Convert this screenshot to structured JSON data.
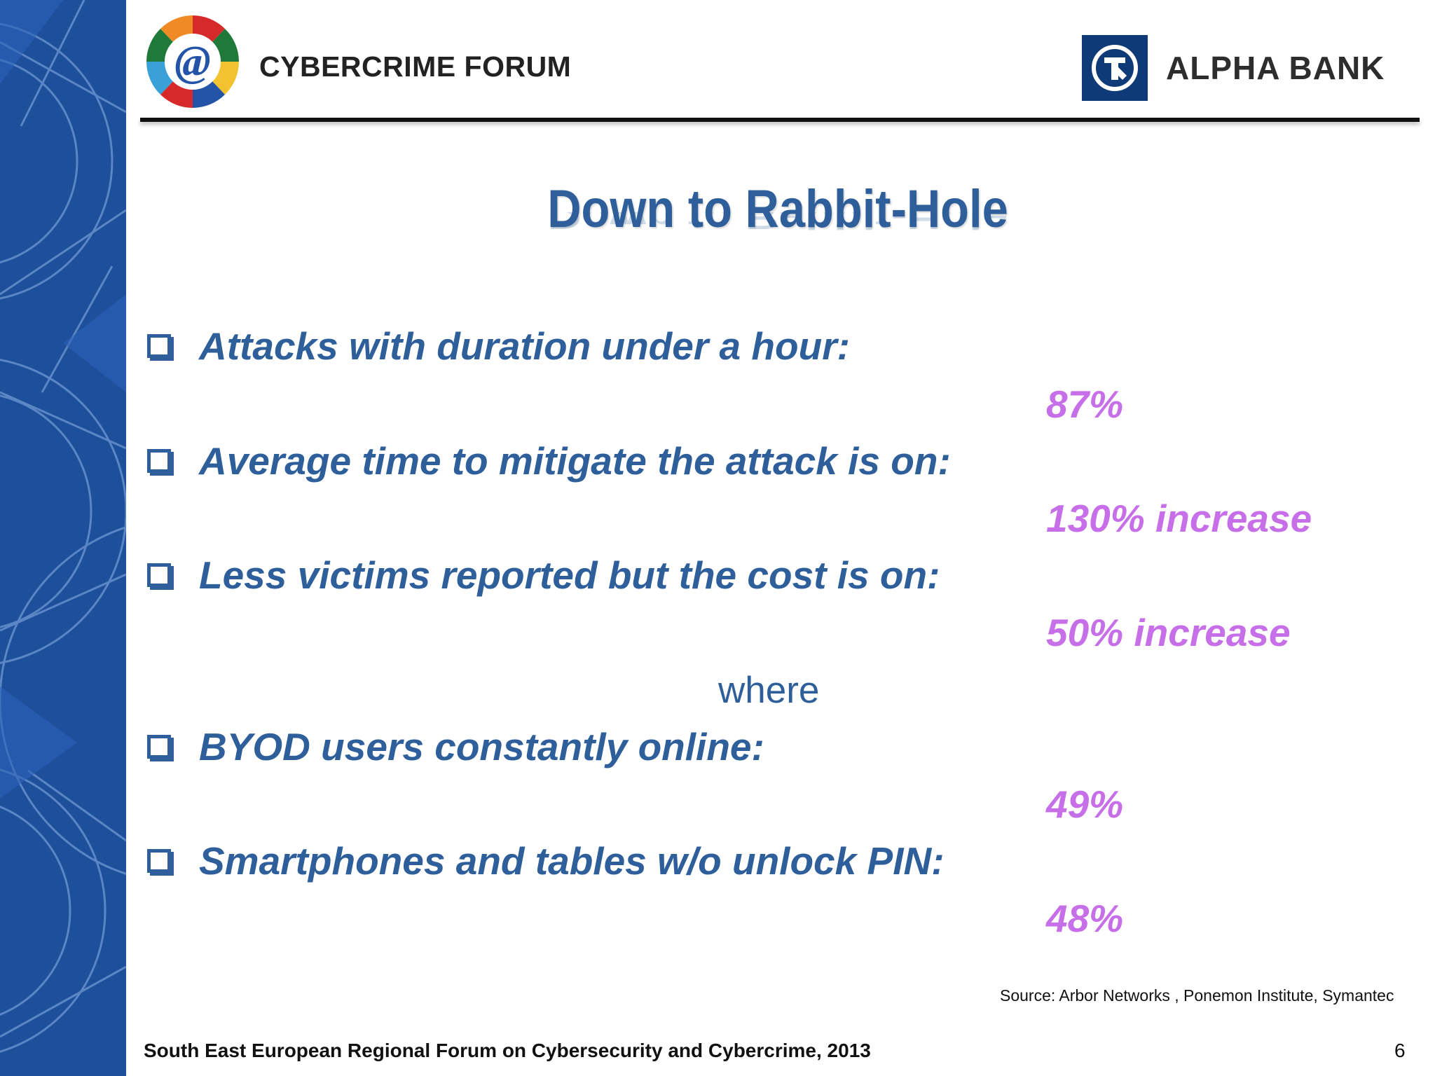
{
  "header": {
    "forum_title": "CYBERCRIME FORUM",
    "bank_name": "ALPHA BANK",
    "forum_logo_icon": "at-sign-globe-flags-logo",
    "bank_logo_icon": "alpha-bank-mark-icon"
  },
  "slide": {
    "title": "Down to Rabbit-Hole",
    "where_label": "where",
    "bullets": [
      {
        "text": "Attacks with duration under a hour:",
        "stat": "87%"
      },
      {
        "text": "Average time to mitigate the attack is on:",
        "stat": "130% increase"
      },
      {
        "text": "Less victims reported but the cost is on:",
        "stat": "50% increase"
      },
      {
        "text": "BYOD users constantly online:",
        "stat": "49%"
      },
      {
        "text": "Smartphones and tables w/o unlock PIN:",
        "stat": "48%"
      }
    ],
    "source": "Source: Arbor Networks , Ponemon Institute, Symantec"
  },
  "footer": {
    "text": "South East European Regional Forum on Cybersecurity and Cybercrime, 2013",
    "page_number": "6"
  },
  "colors": {
    "accent_blue": "#2e5f9b",
    "stat_purple": "#c76fe8",
    "band_blue": "#1d4f9b",
    "bank_navy": "#0e3a77"
  }
}
